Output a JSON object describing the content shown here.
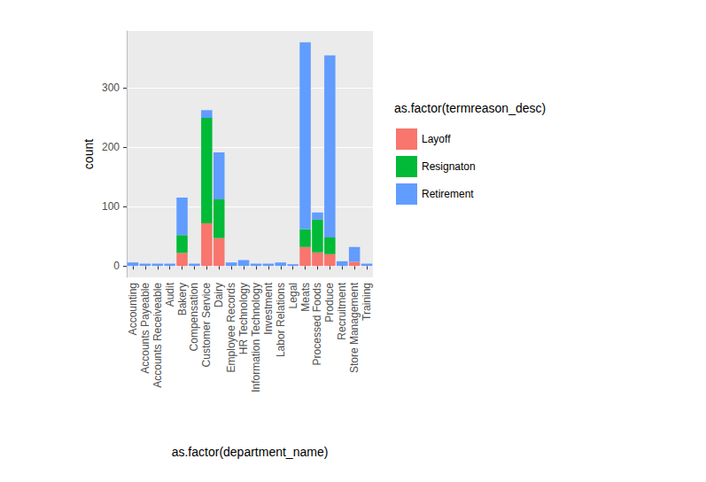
{
  "chart_data": {
    "type": "bar",
    "stacked": true,
    "grid": true,
    "legend": "right",
    "x_label": "as.factor(department_name)",
    "y_label": "count",
    "legend_title": "as.factor(termreason_desc)",
    "categories": [
      "Accounting",
      "Accounts Payeable",
      "Accounts Receiveable",
      "Audit",
      "Bakery",
      "Compensation",
      "Customer Service",
      "Dairy",
      "Employee Records",
      "HR Technology",
      "Information Technology",
      "Investment",
      "Labor Relations",
      "Legal",
      "Meats",
      "Processed Foods",
      "Produce",
      "Recruitment",
      "Store Management",
      "Training"
    ],
    "series": [
      {
        "name": "Layoff",
        "color": "#F8766D",
        "values": [
          0,
          0,
          0,
          0,
          22,
          0,
          72,
          47,
          0,
          0,
          0,
          0,
          0,
          0,
          32,
          23,
          20,
          0,
          7,
          0
        ]
      },
      {
        "name": "Resignaton",
        "color": "#00BA38",
        "values": [
          0,
          0,
          0,
          0,
          30,
          0,
          177,
          65,
          0,
          0,
          0,
          0,
          0,
          0,
          30,
          55,
          28,
          0,
          0,
          0
        ]
      },
      {
        "name": "Retirement",
        "color": "#619CFF",
        "values": [
          6,
          4,
          4,
          4,
          63,
          4,
          13,
          79,
          6,
          10,
          4,
          4,
          6,
          3,
          314,
          12,
          306,
          8,
          25,
          4
        ]
      }
    ],
    "ylim": [
      -19,
      395
    ],
    "yticks": [
      0,
      100,
      200,
      300
    ]
  }
}
